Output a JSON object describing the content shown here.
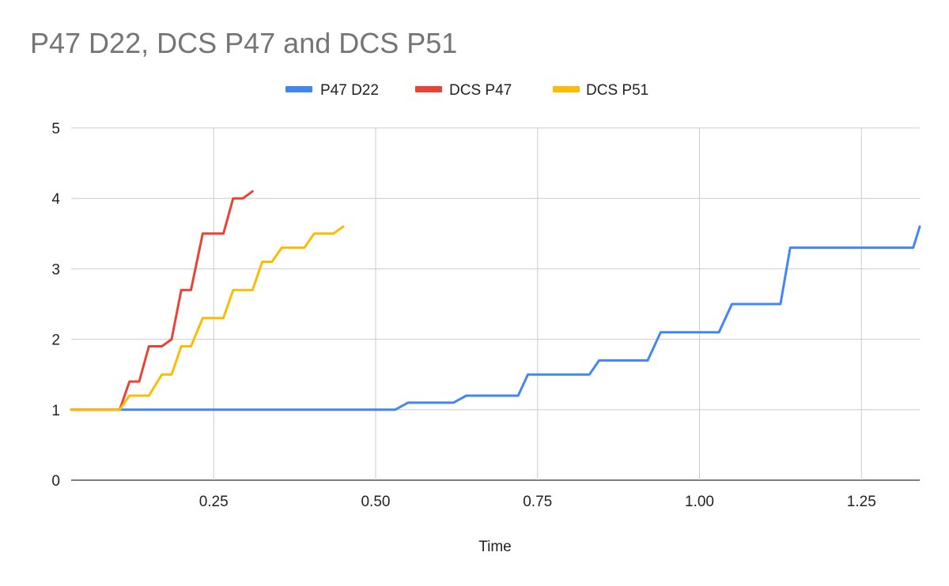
{
  "chart_data": {
    "type": "line",
    "title": "P47 D22, DCS P47 and DCS P51",
    "xlabel": "Time",
    "ylabel": "",
    "xlim": [
      0.03,
      1.34
    ],
    "ylim": [
      0,
      5
    ],
    "x_ticks": [
      {
        "value": 0.25,
        "label": "0.25"
      },
      {
        "value": 0.5,
        "label": "0.50"
      },
      {
        "value": 0.75,
        "label": "0.75"
      },
      {
        "value": 1.0,
        "label": "1.00"
      },
      {
        "value": 1.25,
        "label": "1.25"
      }
    ],
    "y_ticks": [
      {
        "value": 0,
        "label": "0"
      },
      {
        "value": 1,
        "label": "1"
      },
      {
        "value": 2,
        "label": "2"
      },
      {
        "value": 3,
        "label": "3"
      },
      {
        "value": 4,
        "label": "4"
      },
      {
        "value": 5,
        "label": "5"
      }
    ],
    "grid": true,
    "legend_position": "top-center",
    "series": [
      {
        "name": "P47 D22",
        "color": "#4285f4",
        "points": [
          [
            0.03,
            1
          ],
          [
            0.53,
            1
          ],
          [
            0.55,
            1.1
          ],
          [
            0.62,
            1.1
          ],
          [
            0.64,
            1.2
          ],
          [
            0.72,
            1.2
          ],
          [
            0.735,
            1.5
          ],
          [
            0.83,
            1.5
          ],
          [
            0.845,
            1.7
          ],
          [
            0.92,
            1.7
          ],
          [
            0.94,
            2.1
          ],
          [
            1.03,
            2.1
          ],
          [
            1.05,
            2.5
          ],
          [
            1.125,
            2.5
          ],
          [
            1.14,
            3.3
          ],
          [
            1.33,
            3.3
          ],
          [
            1.34,
            3.6
          ]
        ]
      },
      {
        "name": "DCS P47",
        "color": "#ea4335",
        "points": [
          [
            0.03,
            1
          ],
          [
            0.105,
            1
          ],
          [
            0.12,
            1.4
          ],
          [
            0.135,
            1.4
          ],
          [
            0.15,
            1.9
          ],
          [
            0.17,
            1.9
          ],
          [
            0.185,
            2
          ],
          [
            0.2,
            2.7
          ],
          [
            0.215,
            2.7
          ],
          [
            0.233,
            3.5
          ],
          [
            0.265,
            3.5
          ],
          [
            0.28,
            4
          ],
          [
            0.295,
            4
          ],
          [
            0.31,
            4.1
          ]
        ]
      },
      {
        "name": "DCS P51",
        "color": "#fbbc04",
        "points": [
          [
            0.03,
            1
          ],
          [
            0.105,
            1
          ],
          [
            0.12,
            1.2
          ],
          [
            0.15,
            1.2
          ],
          [
            0.17,
            1.5
          ],
          [
            0.185,
            1.5
          ],
          [
            0.2,
            1.9
          ],
          [
            0.215,
            1.9
          ],
          [
            0.233,
            2.3
          ],
          [
            0.265,
            2.3
          ],
          [
            0.28,
            2.7
          ],
          [
            0.31,
            2.7
          ],
          [
            0.325,
            3.1
          ],
          [
            0.34,
            3.1
          ],
          [
            0.355,
            3.3
          ],
          [
            0.39,
            3.3
          ],
          [
            0.405,
            3.5
          ],
          [
            0.435,
            3.5
          ],
          [
            0.45,
            3.6
          ]
        ]
      }
    ]
  }
}
